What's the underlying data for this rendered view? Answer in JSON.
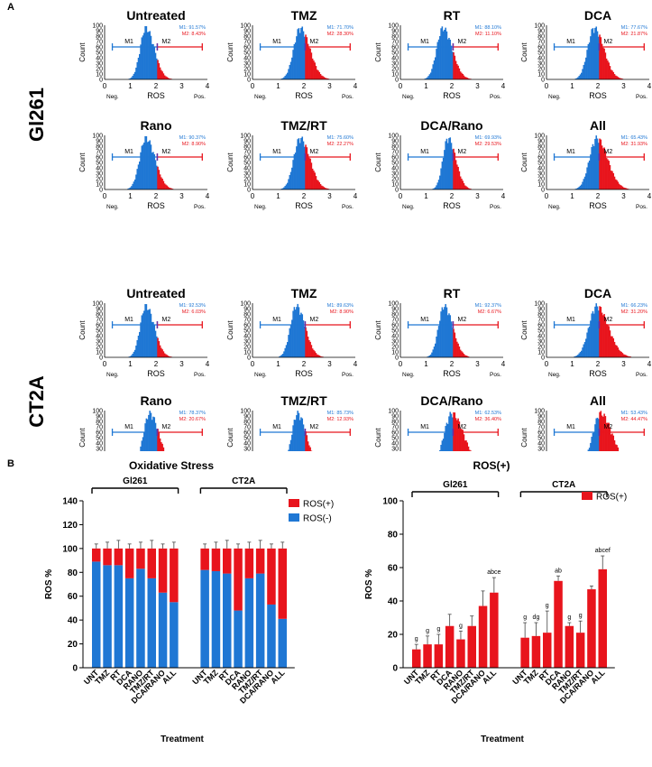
{
  "panels": {
    "a": "A",
    "b": "B"
  },
  "row_labels": [
    "Gl261",
    "CT2A"
  ],
  "histogram_axis": {
    "xlabel": "ROS",
    "ylabel": "Count",
    "x_ticks": [
      "0",
      "1",
      "2",
      "3",
      "4"
    ],
    "y_ticks": [
      "0",
      "10",
      "20",
      "30",
      "40",
      "50",
      "60",
      "70",
      "80",
      "90",
      "100"
    ],
    "neg_label": "Neg.",
    "pos_label": "Pos.",
    "gate1": "M1",
    "gate2": "M2"
  },
  "colors": {
    "neg": "#1f77d4",
    "pos": "#e8141c",
    "gate_neg": "#1f77d4",
    "gate_pos": "#e8141c",
    "divider": "#6a2fa0"
  },
  "histograms": [
    {
      "title": "Untreated",
      "m1": "M1: 91.57%",
      "m2": "M2: 8.43%",
      "peak": 1.6,
      "width": 0.22
    },
    {
      "title": "TMZ",
      "m1": "M1: 71.70%",
      "m2": "M2: 28.30%",
      "peak": 1.85,
      "width": 0.25
    },
    {
      "title": "RT",
      "m1": "M1: 88.10%",
      "m2": "M2: 11.10%",
      "peak": 1.65,
      "width": 0.24
    },
    {
      "title": "DCA",
      "m1": "M1: 77.67%",
      "m2": "M2: 21.87%",
      "peak": 1.85,
      "width": 0.25
    },
    {
      "title": "Rano",
      "m1": "M1: 90.37%",
      "m2": "M2: 8.90%",
      "peak": 1.6,
      "width": 0.24
    },
    {
      "title": "TMZ/RT",
      "m1": "M1: 75.60%",
      "m2": "M2: 22.27%",
      "peak": 1.85,
      "width": 0.25
    },
    {
      "title": "DCA/Rano",
      "m1": "M1: 69.93%",
      "m2": "M2: 29.53%",
      "peak": 1.85,
      "width": 0.2
    },
    {
      "title": "All",
      "m1": "M1: 65.43%",
      "m2": "M2: 31.93%",
      "peak": 1.95,
      "width": 0.28
    },
    {
      "title": "Untreated",
      "m1": "M1: 92.53%",
      "m2": "M2: 6.03%",
      "peak": 1.6,
      "width": 0.22
    },
    {
      "title": "TMZ",
      "m1": "M1: 89.63%",
      "m2": "M2: 8.90%",
      "peak": 1.7,
      "width": 0.23
    },
    {
      "title": "RT",
      "m1": "M1: 92.37%",
      "m2": "M2: 6.67%",
      "peak": 1.7,
      "width": 0.22
    },
    {
      "title": "DCA",
      "m1": "M1: 66.23%",
      "m2": "M2: 31.20%",
      "peak": 1.95,
      "width": 0.3
    },
    {
      "title": "Rano",
      "m1": "M1: 78.37%",
      "m2": "M2: 20.67%",
      "peak": 1.75,
      "width": 0.24
    },
    {
      "title": "TMZ/RT",
      "m1": "M1: 85.73%",
      "m2": "M2: 12.93%",
      "peak": 1.75,
      "width": 0.22
    },
    {
      "title": "DCA/Rano",
      "m1": "M1: 62.53%",
      "m2": "M2: 36.40%",
      "peak": 2.0,
      "width": 0.3
    },
    {
      "title": "All",
      "m1": "M1: 53.43%",
      "m2": "M2: 44.47%",
      "peak": 2.1,
      "width": 0.3
    }
  ],
  "chart_data": [
    {
      "type": "bar",
      "title": "Oxidative Stress",
      "xlabel": "Treatment",
      "ylabel": "ROS %",
      "ylim": [
        0,
        140
      ],
      "y_ticks": [
        "0",
        "20",
        "40",
        "60",
        "80",
        "100",
        "120",
        "140"
      ],
      "groups": [
        "Gl261",
        "CT2A"
      ],
      "categories": [
        "UNT",
        "TMZ",
        "RT",
        "DCA",
        "RANO",
        "TMZ/RT",
        "DCA/RANO",
        "ALL"
      ],
      "legend": [
        "ROS(+)",
        "ROS(-)"
      ],
      "legend_position": "right",
      "series": [
        {
          "name": "ROS(-)",
          "group": "Gl261",
          "values": [
            89,
            86,
            86,
            75,
            83,
            75,
            63,
            55
          ]
        },
        {
          "name": "ROS(+)",
          "group": "Gl261",
          "values": [
            11,
            14,
            14,
            25,
            17,
            25,
            37,
            45
          ]
        },
        {
          "name": "ROS(-)",
          "group": "CT2A",
          "values": [
            82,
            81,
            79,
            48,
            75,
            79,
            53,
            41
          ]
        },
        {
          "name": "ROS(+)",
          "group": "CT2A",
          "values": [
            18,
            19,
            21,
            52,
            25,
            21,
            47,
            59
          ]
        }
      ]
    },
    {
      "type": "bar",
      "title": "ROS(+)",
      "xlabel": "Treatment",
      "ylabel": "ROS %",
      "ylim": [
        0,
        100
      ],
      "y_ticks": [
        "0",
        "20",
        "40",
        "60",
        "80",
        "100"
      ],
      "groups": [
        "Gl261",
        "CT2A"
      ],
      "categories": [
        "UNT",
        "TMZ",
        "RT",
        "DCA",
        "RANO",
        "TMZ/RT",
        "DCA/RANO",
        "ALL"
      ],
      "legend": [
        "ROS(+)"
      ],
      "legend_position": "right",
      "series": [
        {
          "name": "ROS(+)",
          "group": "Gl261",
          "values": [
            11,
            14,
            14,
            25,
            17,
            25,
            37,
            45
          ],
          "errors": [
            3,
            5,
            6,
            7,
            5,
            6,
            9,
            9
          ],
          "annotations": [
            "g",
            "g",
            "g",
            "",
            "g",
            "",
            "",
            "abce"
          ]
        },
        {
          "name": "ROS(+)",
          "group": "CT2A",
          "values": [
            18,
            19,
            21,
            52,
            25,
            21,
            47,
            59
          ],
          "errors": [
            9,
            8,
            13,
            3,
            2,
            7,
            2,
            8
          ],
          "annotations": [
            "g",
            "dg",
            "g",
            "ab",
            "g",
            "g",
            "",
            "abcef"
          ]
        }
      ]
    }
  ]
}
